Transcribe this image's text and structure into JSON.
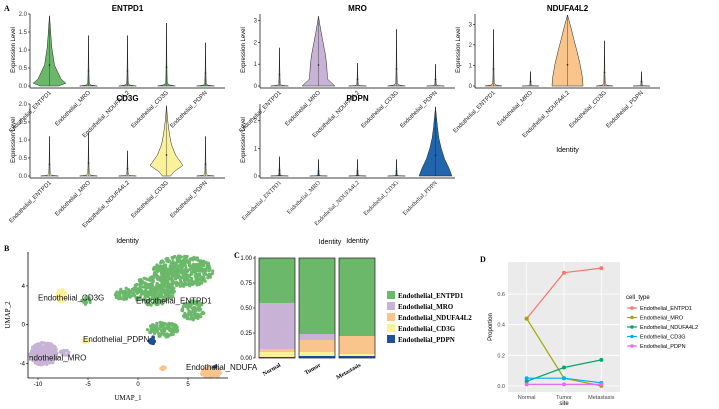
{
  "panel_labels": {
    "a": "A",
    "b": "B",
    "c": "C",
    "d": "D"
  },
  "chart_data": [
    {
      "type": "violin",
      "panel": "A",
      "shared_x_categories": [
        "Endothelial_ENTPD1",
        "Endothelial_MRO",
        "Endothelial_NDUFA4L2",
        "Endothelial_CD3G",
        "Endothelial_PDPN"
      ],
      "shared_xlabel": "Identity",
      "shared_ylabel": "Expression Level",
      "subplots": [
        {
          "title": "ENTPD1",
          "ylim": [
            0,
            2.0
          ],
          "yticks": [
            "0.0",
            "0.5",
            "1.0",
            "1.5",
            "2.0"
          ],
          "violin_max": [
            1.95,
            1.4,
            1.4,
            1.75,
            1.2
          ],
          "peak_group": "Endothelial_ENTPD1",
          "color": "#6bb86b"
        },
        {
          "title": "MRO",
          "ylim": [
            0,
            3.3
          ],
          "yticks": [
            "0",
            "1",
            "2",
            "3"
          ],
          "violin_max": [
            1.75,
            3.2,
            1.05,
            2.6,
            1.0
          ],
          "peak_group": "Endothelial_MRO",
          "color": "#c8b3d6"
        },
        {
          "title": "NDUFA4L2",
          "ylim": [
            0,
            3.5
          ],
          "yticks": [
            "0",
            "1",
            "2",
            "3"
          ],
          "violin_max": [
            2.75,
            0.7,
            3.45,
            2.2,
            0.7
          ],
          "peak_group": "Endothelial_NDUFA4L2",
          "color": "#f9c58c"
        },
        {
          "title": "CD3G",
          "ylim": [
            0,
            2.0
          ],
          "yticks": [
            "0.0",
            "0.5",
            "1.0",
            "1.5",
            "2.0"
          ],
          "violin_max": [
            1.1,
            1.2,
            0.7,
            1.95,
            1.1
          ],
          "peak_group": "Endothelial_CD3G",
          "color": "#faf29b"
        },
        {
          "title": "PDPN",
          "ylim": [
            0,
            2.6
          ],
          "yticks": [
            "0",
            "1",
            "2"
          ],
          "violin_max": [
            0.7,
            0.6,
            0.6,
            0.6,
            2.5
          ],
          "peak_group": "Endothelial_PDPN",
          "color": "#2166ac"
        }
      ]
    },
    {
      "type": "scatter",
      "panel": "B",
      "xlabel": "UMAP_1",
      "ylabel": "UMAP_2",
      "xlim": [
        -11,
        9
      ],
      "ylim": [
        -5.5,
        7.5
      ],
      "xticks": [
        "-10",
        "-5",
        "0",
        "5"
      ],
      "yticks": [
        "-4",
        "0",
        "4"
      ],
      "clusters": [
        {
          "name": "Endothelial_ENTPD1",
          "label": "Endothelial_ENTPD1",
          "color": "#6bb86b",
          "center": [
            3.0,
            3.0
          ]
        },
        {
          "name": "Endothelial_MRO",
          "label": "ndothelial_MRO",
          "color": "#c8b3d6",
          "center": [
            -9.2,
            -3.3
          ]
        },
        {
          "name": "Endothelial_NDUFA4L2",
          "label": "Endothelial_NDUFA",
          "color": "#f9c58c",
          "center": [
            7.3,
            -4.8
          ]
        },
        {
          "name": "Endothelial_CD3G",
          "label": "Endothelial_CD3G",
          "color": "#faf29b",
          "center": [
            -7.6,
            2.9
          ]
        },
        {
          "name": "Endothelial_PDPN",
          "label": "Endothelial_PDPN",
          "color": "#1f4e9c",
          "center": [
            1.3,
            -1.7
          ]
        }
      ]
    },
    {
      "type": "bar",
      "stacked": true,
      "panel": "C",
      "title": "Identity",
      "categories": [
        "Normal",
        "Tumor",
        "Metastasis"
      ],
      "yticks": [
        "0.00",
        "0.25",
        "0.50",
        "0.75",
        "1.00"
      ],
      "ylim": [
        0,
        1
      ],
      "series": [
        {
          "name": "Endothelial_PDPN",
          "color": "#1f4e9c",
          "values": [
            0.01,
            0.02,
            0.02
          ]
        },
        {
          "name": "Endothelial_CD3G",
          "color": "#faf29b",
          "values": [
            0.05,
            0.04,
            0.02
          ]
        },
        {
          "name": "Endothelial_NDUFA4L2",
          "color": "#f9c58c",
          "values": [
            0.03,
            0.12,
            0.18
          ]
        },
        {
          "name": "Endothelial_MRO",
          "color": "#c8b3d6",
          "values": [
            0.46,
            0.06,
            0.0
          ]
        },
        {
          "name": "Endothelial_ENTPD1",
          "color": "#6bb86b",
          "values": [
            0.45,
            0.76,
            0.78
          ]
        }
      ],
      "legend_order": [
        "Endothelial_ENTPD1",
        "Endothelial_MRO",
        "Endothelial_NDUFA4L2",
        "Endothelial_CD3G",
        "Endothelial_PDPN"
      ]
    },
    {
      "type": "line",
      "panel": "D",
      "xlabel": "site",
      "ylabel": "Proportion",
      "categories": [
        "Normal",
        "Tumor",
        "Metastasis"
      ],
      "ylim": [
        0,
        0.8
      ],
      "yticks": [
        "0.0",
        "0.2",
        "0.4",
        "0.6"
      ],
      "legend_title": "cell_type",
      "series": [
        {
          "name": "Endothelial_ENTPD1",
          "color": "#f8766d",
          "values": [
            0.44,
            0.74,
            0.77
          ]
        },
        {
          "name": "Endothelial_MRO",
          "color": "#a3a500",
          "values": [
            0.44,
            0.05,
            0.0
          ]
        },
        {
          "name": "Endothelial_NDUFA4L2",
          "color": "#00a86b",
          "values": [
            0.03,
            0.12,
            0.17
          ]
        },
        {
          "name": "Endothelial_CD3G",
          "color": "#00b0f6",
          "values": [
            0.05,
            0.05,
            0.02
          ]
        },
        {
          "name": "Endothelial_PDPN",
          "color": "#e76bf3",
          "values": [
            0.01,
            0.01,
            0.01
          ]
        }
      ]
    }
  ]
}
